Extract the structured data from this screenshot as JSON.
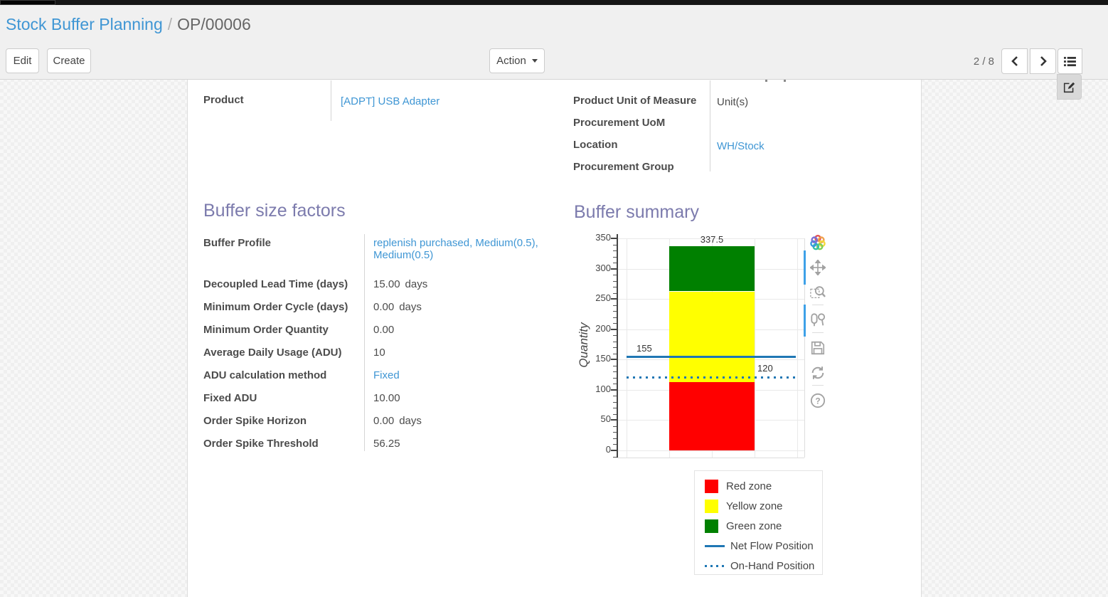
{
  "breadcrumb": {
    "parent": "Stock Buffer Planning",
    "separator": "/",
    "current": "OP/00006"
  },
  "control_panel": {
    "edit_label": "Edit",
    "create_label": "Create",
    "action_label": "Action",
    "pager": "2 / 8"
  },
  "form": {
    "product": {
      "label": "Product",
      "value": "[ADPT] USB Adapter"
    },
    "right_fields": [
      {
        "label": "Product Unit of Measure",
        "value": "Unit(s)"
      },
      {
        "label": "Procurement UoM",
        "value": ""
      },
      {
        "label": "Location",
        "value": "WH/Stock"
      },
      {
        "label": "Procurement Group",
        "value": ""
      }
    ],
    "buffer_factors": {
      "title": "Buffer size factors",
      "fields": [
        {
          "label": "Buffer Profile",
          "value": "replenish purchased, Medium(0.5), Medium(0.5)",
          "unit": ""
        },
        {
          "label": "Decoupled Lead Time (days)",
          "value": "15.00",
          "unit": "days"
        },
        {
          "label": "Minimum Order Cycle (days)",
          "value": "0.00",
          "unit": "days"
        },
        {
          "label": "Minimum Order Quantity",
          "value": "0.00",
          "unit": ""
        },
        {
          "label": "Average Daily Usage (ADU)",
          "value": "10",
          "unit": ""
        },
        {
          "label": "ADU calculation method",
          "value": "Fixed",
          "unit": ""
        },
        {
          "label": "Fixed ADU",
          "value": "10.00",
          "unit": ""
        },
        {
          "label": "Order Spike Horizon",
          "value": "0.00",
          "unit": "days"
        },
        {
          "label": "Order Spike Threshold",
          "value": "56.25",
          "unit": ""
        }
      ]
    },
    "buffer_summary": {
      "title": "Buffer summary"
    }
  },
  "chart_data": {
    "type": "bar",
    "title": "",
    "xlabel": "",
    "ylabel": "Quantity",
    "ylim": [
      0,
      350
    ],
    "yticks": [
      0,
      50,
      100,
      150,
      200,
      250,
      300,
      350
    ],
    "grid": true,
    "legend_position": "bottom-right",
    "series": [
      {
        "name": "Red zone",
        "type": "bar-segment",
        "from": 0,
        "to": 112.5,
        "label": "112.5",
        "color": "#ff0000"
      },
      {
        "name": "Yellow zone",
        "type": "bar-segment",
        "from": 112.5,
        "to": 262.5,
        "label": "262.5",
        "color": "#ffff00"
      },
      {
        "name": "Green zone",
        "type": "bar-segment",
        "from": 262.5,
        "to": 337.5,
        "label": "337.5",
        "color": "#008000"
      },
      {
        "name": "Net Flow Position",
        "type": "hline",
        "value": 155,
        "label": "155",
        "style": "solid",
        "color": "#1f77b4",
        "label_side": "left"
      },
      {
        "name": "On-Hand Position",
        "type": "hline",
        "value": 120,
        "label": "120",
        "style": "dotted",
        "color": "#1f77b4",
        "label_side": "right"
      }
    ]
  },
  "modebar": {
    "icons": [
      "plotly-logo",
      "pan",
      "box-zoom",
      "compare-hover",
      "save",
      "reset-axes",
      "help"
    ]
  },
  "colors": {
    "link_blue": "#3f96d4",
    "heading_purple": "#7c7bad",
    "net_flow_blue": "#1f77b4"
  }
}
